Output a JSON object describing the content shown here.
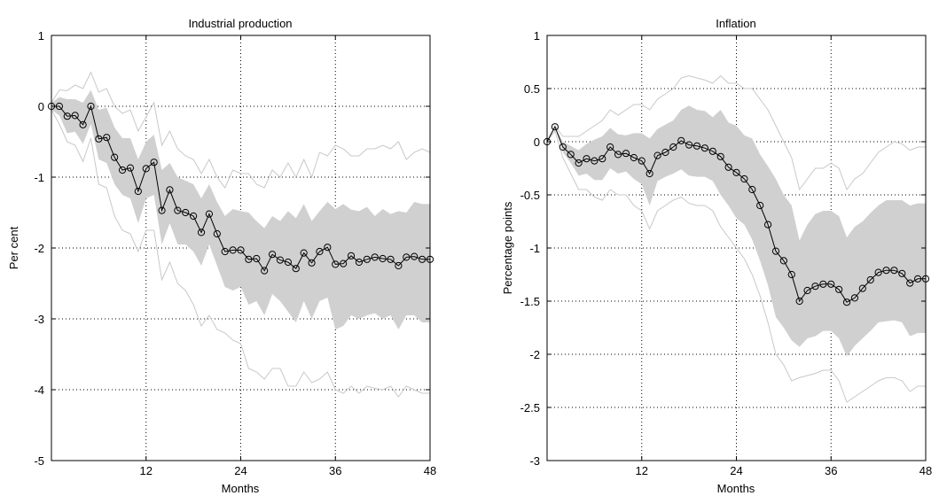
{
  "chart_data": [
    {
      "type": "line",
      "title": "Industrial production",
      "xlabel": "Months",
      "ylabel": "Per cent",
      "xlim": [
        0,
        48
      ],
      "ylim": [
        -5,
        1
      ],
      "xticks": [
        "12",
        "24",
        "36",
        "48"
      ],
      "yticks": [
        "1",
        "0",
        "-1",
        "-2",
        "-3",
        "-4",
        "-5"
      ],
      "grid": true,
      "series": [
        {
          "marker": "circle",
          "x": [
            0,
            1,
            2,
            3,
            4,
            5,
            6,
            7,
            8,
            9,
            10,
            11,
            12,
            13,
            14,
            15,
            16,
            17,
            18,
            19,
            20,
            21,
            22,
            23,
            24,
            25,
            26,
            27,
            28,
            29,
            30,
            31,
            32,
            33,
            34,
            35,
            36,
            37,
            38,
            39,
            40,
            41,
            42,
            43,
            44,
            45,
            46,
            47,
            48
          ],
          "values": [
            0,
            0,
            -0.14,
            -0.13,
            -0.26,
            0,
            -0.46,
            -0.44,
            -0.72,
            -0.9,
            -0.87,
            -1.2,
            -0.88,
            -0.79,
            -1.47,
            -1.18,
            -1.47,
            -1.5,
            -1.55,
            -1.78,
            -1.52,
            -1.8,
            -2.05,
            -2.03,
            -2.03,
            -2.16,
            -2.15,
            -2.32,
            -2.09,
            -2.17,
            -2.2,
            -2.29,
            -2.07,
            -2.21,
            -2.05,
            -1.99,
            -2.23,
            -2.22,
            -2.11,
            -2.2,
            -2.16,
            -2.13,
            -2.15,
            -2.16,
            -2.25,
            -2.13,
            -2.12,
            -2.16,
            -2.16
          ]
        },
        {
          "role": "band-upper",
          "x": [
            0,
            1,
            2,
            3,
            4,
            5,
            6,
            7,
            8,
            9,
            10,
            11,
            12,
            13,
            14,
            15,
            16,
            17,
            18,
            19,
            20,
            21,
            22,
            23,
            24,
            25,
            26,
            27,
            28,
            29,
            30,
            31,
            32,
            33,
            34,
            35,
            36,
            37,
            38,
            39,
            40,
            41,
            42,
            43,
            44,
            45,
            46,
            47,
            48
          ],
          "values": [
            0.05,
            0.13,
            0.1,
            0.1,
            0.05,
            0.23,
            -0.05,
            -0.02,
            -0.3,
            -0.45,
            -0.45,
            -0.75,
            -0.5,
            -0.4,
            -0.9,
            -0.8,
            -1.0,
            -1.05,
            -1.1,
            -1.3,
            -1.1,
            -1.35,
            -1.55,
            -1.45,
            -1.48,
            -1.5,
            -1.62,
            -1.72,
            -1.55,
            -1.62,
            -1.48,
            -1.58,
            -1.38,
            -1.62,
            -1.48,
            -1.35,
            -1.45,
            -1.38,
            -1.46,
            -1.48,
            -1.42,
            -1.55,
            -1.45,
            -1.52,
            -1.48,
            -1.5,
            -1.35,
            -1.38,
            -1.38
          ]
        },
        {
          "role": "band-lower",
          "x": [
            0,
            1,
            2,
            3,
            4,
            5,
            6,
            7,
            8,
            9,
            10,
            11,
            12,
            13,
            14,
            15,
            16,
            17,
            18,
            19,
            20,
            21,
            22,
            23,
            24,
            25,
            26,
            27,
            28,
            29,
            30,
            31,
            32,
            33,
            34,
            35,
            36,
            37,
            38,
            39,
            40,
            41,
            42,
            43,
            44,
            45,
            46,
            47,
            48
          ],
          "values": [
            -0.05,
            -0.13,
            -0.38,
            -0.36,
            -0.53,
            -0.25,
            -0.75,
            -0.8,
            -1.1,
            -1.25,
            -1.3,
            -1.65,
            -1.3,
            -1.25,
            -1.95,
            -1.65,
            -1.95,
            -1.95,
            -2.05,
            -2.25,
            -1.95,
            -2.25,
            -2.55,
            -2.6,
            -2.55,
            -2.8,
            -2.75,
            -2.95,
            -2.65,
            -2.75,
            -2.9,
            -3.05,
            -2.75,
            -3.0,
            -2.75,
            -2.7,
            -3.15,
            -3.1,
            -2.95,
            -3.0,
            -2.95,
            -2.92,
            -3.0,
            -2.95,
            -3.15,
            -2.95,
            -2.95,
            -3.05,
            -3.05
          ]
        },
        {
          "role": "outer-upper",
          "x": [
            0,
            1,
            2,
            3,
            4,
            5,
            6,
            7,
            8,
            9,
            10,
            11,
            12,
            13,
            14,
            15,
            16,
            17,
            18,
            19,
            20,
            21,
            22,
            23,
            24,
            25,
            26,
            27,
            28,
            29,
            30,
            31,
            32,
            33,
            34,
            35,
            36,
            37,
            38,
            39,
            40,
            41,
            42,
            43,
            44,
            45,
            46,
            47,
            48
          ],
          "values": [
            0.05,
            0.23,
            0.22,
            0.3,
            0.25,
            0.48,
            0.2,
            0.25,
            0.0,
            -0.1,
            -0.05,
            -0.35,
            -0.15,
            0.05,
            -0.55,
            -0.35,
            -0.6,
            -0.7,
            -0.75,
            -0.95,
            -0.75,
            -1.0,
            -1.15,
            -0.9,
            -0.95,
            -0.95,
            -1.1,
            -1.15,
            -0.9,
            -1.0,
            -0.8,
            -1.0,
            -0.75,
            -1.0,
            -0.65,
            -0.7,
            -0.55,
            -0.6,
            -0.7,
            -0.7,
            -0.6,
            -0.6,
            -0.55,
            -0.6,
            -0.5,
            -0.75,
            -0.65,
            -0.6,
            -0.65
          ]
        },
        {
          "role": "outer-lower",
          "x": [
            0,
            1,
            2,
            3,
            4,
            5,
            6,
            7,
            8,
            9,
            10,
            11,
            12,
            13,
            14,
            15,
            16,
            17,
            18,
            19,
            20,
            21,
            22,
            23,
            24,
            25,
            26,
            27,
            28,
            29,
            30,
            31,
            32,
            33,
            34,
            35,
            36,
            37,
            38,
            39,
            40,
            41,
            42,
            43,
            44,
            45,
            46,
            47,
            48
          ],
          "values": [
            -0.05,
            -0.25,
            -0.5,
            -0.55,
            -0.78,
            -0.45,
            -1.1,
            -1.15,
            -1.55,
            -1.75,
            -1.8,
            -2.05,
            -1.75,
            -1.75,
            -2.45,
            -2.2,
            -2.5,
            -2.6,
            -2.8,
            -3.1,
            -2.95,
            -3.15,
            -3.2,
            -3.3,
            -3.35,
            -3.7,
            -3.75,
            -3.85,
            -3.7,
            -3.7,
            -3.95,
            -3.95,
            -3.75,
            -3.9,
            -3.85,
            -3.75,
            -4.0,
            -4.05,
            -3.95,
            -4.05,
            -3.95,
            -3.98,
            -4.0,
            -3.95,
            -4.1,
            -3.95,
            -4.0,
            -4.05,
            -4.05
          ]
        }
      ]
    },
    {
      "type": "line",
      "title": "Inflation",
      "xlabel": "Months",
      "ylabel": "Percentage points",
      "xlim": [
        0,
        48
      ],
      "ylim": [
        -3,
        1
      ],
      "xticks": [
        "12",
        "24",
        "36",
        "48"
      ],
      "yticks": [
        "1",
        "0.5",
        "0",
        "-0.5",
        "-1",
        "-1.5",
        "-2",
        "-2.5",
        "-3"
      ],
      "grid": true,
      "series": [
        {
          "marker": "circle",
          "x": [
            0,
            1,
            2,
            3,
            4,
            5,
            6,
            7,
            8,
            9,
            10,
            11,
            12,
            13,
            14,
            15,
            16,
            17,
            18,
            19,
            20,
            21,
            22,
            23,
            24,
            25,
            26,
            27,
            28,
            29,
            30,
            31,
            32,
            33,
            34,
            35,
            36,
            37,
            38,
            39,
            40,
            41,
            42,
            43,
            44,
            45,
            46,
            47,
            48
          ],
          "values": [
            0,
            0.14,
            -0.05,
            -0.12,
            -0.2,
            -0.16,
            -0.18,
            -0.16,
            -0.05,
            -0.12,
            -0.11,
            -0.15,
            -0.18,
            -0.3,
            -0.13,
            -0.1,
            -0.05,
            0.01,
            -0.03,
            -0.04,
            -0.06,
            -0.09,
            -0.14,
            -0.24,
            -0.29,
            -0.35,
            -0.45,
            -0.6,
            -0.78,
            -1.03,
            -1.12,
            -1.25,
            -1.5,
            -1.4,
            -1.36,
            -1.34,
            -1.34,
            -1.39,
            -1.51,
            -1.47,
            -1.38,
            -1.3,
            -1.23,
            -1.21,
            -1.21,
            -1.24,
            -1.33,
            -1.29,
            -1.29
          ]
        },
        {
          "role": "band-upper",
          "x": [
            0,
            1,
            2,
            3,
            4,
            5,
            6,
            7,
            8,
            9,
            10,
            11,
            12,
            13,
            14,
            15,
            16,
            17,
            18,
            19,
            20,
            21,
            22,
            23,
            24,
            25,
            26,
            27,
            28,
            29,
            30,
            31,
            32,
            33,
            34,
            35,
            36,
            37,
            38,
            39,
            40,
            41,
            42,
            43,
            44,
            45,
            46,
            47,
            48
          ],
          "values": [
            0,
            0.14,
            0.0,
            -0.04,
            -0.08,
            -0.02,
            0.02,
            0.05,
            0.13,
            0.07,
            0.06,
            0.08,
            0.08,
            0.03,
            0.12,
            0.16,
            0.2,
            0.3,
            0.34,
            0.3,
            0.29,
            0.23,
            0.3,
            0.18,
            0.15,
            0.06,
            0.03,
            -0.12,
            -0.23,
            -0.35,
            -0.5,
            -0.6,
            -0.93,
            -0.78,
            -0.68,
            -0.65,
            -0.65,
            -0.7,
            -0.9,
            -0.8,
            -0.75,
            -0.67,
            -0.6,
            -0.55,
            -0.55,
            -0.55,
            -0.6,
            -0.58,
            -0.58
          ]
        },
        {
          "role": "band-lower",
          "x": [
            0,
            1,
            2,
            3,
            4,
            5,
            6,
            7,
            8,
            9,
            10,
            11,
            12,
            13,
            14,
            15,
            16,
            17,
            18,
            19,
            20,
            21,
            22,
            23,
            24,
            25,
            26,
            27,
            28,
            29,
            30,
            31,
            32,
            33,
            34,
            35,
            36,
            37,
            38,
            39,
            40,
            41,
            42,
            43,
            44,
            45,
            46,
            47,
            48
          ],
          "values": [
            0,
            0.14,
            -0.1,
            -0.2,
            -0.32,
            -0.3,
            -0.36,
            -0.36,
            -0.25,
            -0.3,
            -0.28,
            -0.35,
            -0.4,
            -0.6,
            -0.37,
            -0.33,
            -0.3,
            -0.26,
            -0.32,
            -0.33,
            -0.33,
            -0.37,
            -0.5,
            -0.6,
            -0.72,
            -0.78,
            -0.92,
            -1.12,
            -1.35,
            -1.65,
            -1.75,
            -1.87,
            -1.93,
            -1.85,
            -1.83,
            -1.78,
            -1.78,
            -1.85,
            -2.02,
            -1.92,
            -1.85,
            -1.78,
            -1.7,
            -1.69,
            -1.68,
            -1.7,
            -1.83,
            -1.8,
            -1.8
          ]
        },
        {
          "role": "outer-upper",
          "x": [
            0,
            1,
            2,
            3,
            4,
            5,
            6,
            7,
            8,
            9,
            10,
            11,
            12,
            13,
            14,
            15,
            16,
            17,
            18,
            19,
            20,
            21,
            22,
            23,
            24,
            25,
            26,
            27,
            28,
            29,
            30,
            31,
            32,
            33,
            34,
            35,
            36,
            37,
            38,
            39,
            40,
            41,
            42,
            43,
            44,
            45,
            46,
            47,
            48
          ],
          "values": [
            0,
            0.15,
            0.05,
            0.05,
            0.05,
            0.1,
            0.15,
            0.2,
            0.3,
            0.25,
            0.3,
            0.35,
            0.35,
            0.3,
            0.4,
            0.45,
            0.5,
            0.6,
            0.62,
            0.6,
            0.58,
            0.55,
            0.62,
            0.55,
            0.55,
            0.5,
            0.5,
            0.4,
            0.3,
            0.15,
            0.0,
            -0.15,
            -0.45,
            -0.35,
            -0.25,
            -0.25,
            -0.2,
            -0.25,
            -0.45,
            -0.35,
            -0.3,
            -0.2,
            -0.1,
            -0.05,
            0.0,
            -0.02,
            -0.08,
            -0.05,
            -0.05
          ]
        },
        {
          "role": "outer-lower",
          "x": [
            0,
            1,
            2,
            3,
            4,
            5,
            6,
            7,
            8,
            9,
            10,
            11,
            12,
            13,
            14,
            15,
            16,
            17,
            18,
            19,
            20,
            21,
            22,
            23,
            24,
            25,
            26,
            27,
            28,
            29,
            30,
            31,
            32,
            33,
            34,
            35,
            36,
            37,
            38,
            39,
            40,
            41,
            42,
            43,
            44,
            45,
            46,
            47,
            48
          ],
          "values": [
            0,
            0.1,
            -0.15,
            -0.3,
            -0.45,
            -0.45,
            -0.52,
            -0.55,
            -0.45,
            -0.5,
            -0.5,
            -0.6,
            -0.65,
            -0.82,
            -0.65,
            -0.6,
            -0.55,
            -0.52,
            -0.58,
            -0.6,
            -0.6,
            -0.65,
            -0.8,
            -0.9,
            -1.0,
            -1.1,
            -1.25,
            -1.45,
            -1.7,
            -2.0,
            -2.1,
            -2.25,
            -2.22,
            -2.2,
            -2.18,
            -2.15,
            -2.15,
            -2.25,
            -2.45,
            -2.4,
            -2.35,
            -2.3,
            -2.25,
            -2.22,
            -2.22,
            -2.25,
            -2.35,
            -2.3,
            -2.3
          ]
        }
      ]
    }
  ]
}
